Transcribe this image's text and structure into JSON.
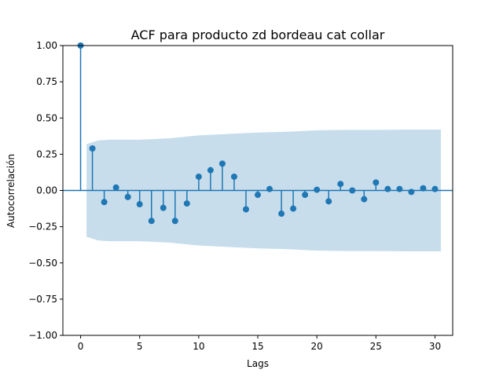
{
  "chart_data": {
    "type": "scatter",
    "subtype": "stem (autocorrelation function)",
    "title": "ACF para producto zd bordeau cat collar",
    "xlabel": "Lags",
    "ylabel": "Autocorrelación",
    "xlim": [
      -1.5,
      31.5
    ],
    "ylim": [
      -1.0,
      1.0
    ],
    "x_ticks": [
      0,
      5,
      10,
      15,
      20,
      25,
      30
    ],
    "x_tick_labels": [
      "0",
      "5",
      "10",
      "15",
      "20",
      "25",
      "30"
    ],
    "y_ticks": [
      -1.0,
      -0.75,
      -0.5,
      -0.25,
      0.0,
      0.25,
      0.5,
      0.75,
      1.0
    ],
    "y_tick_labels": [
      "−1.00",
      "−0.75",
      "−0.50",
      "−0.25",
      "0.00",
      "0.25",
      "0.50",
      "0.75",
      "1.00"
    ],
    "grid": false,
    "colors": {
      "marker": "#1f77b4",
      "band": "#1f77b4",
      "band_alpha": 0.25,
      "axes": "#000000"
    },
    "series": [
      {
        "lags": [
          0,
          1,
          2,
          3,
          4,
          5,
          6,
          7,
          8,
          9,
          10,
          11,
          12,
          13,
          14,
          15,
          16,
          17,
          18,
          19,
          20,
          21,
          22,
          23,
          24,
          25,
          26,
          27,
          28,
          29,
          30
        ],
        "values": [
          1.0,
          0.29,
          -0.08,
          0.02,
          -0.045,
          -0.095,
          -0.21,
          -0.12,
          -0.21,
          -0.09,
          0.095,
          0.14,
          0.185,
          0.095,
          -0.13,
          -0.03,
          0.01,
          -0.16,
          -0.125,
          -0.03,
          0.005,
          -0.075,
          0.045,
          0.0,
          -0.06,
          0.055,
          0.01,
          0.01,
          -0.01,
          0.015,
          0.01
        ]
      }
    ],
    "confidence_band": {
      "lags": [
        0.5,
        1.5,
        2.5,
        5,
        7.5,
        10,
        12.5,
        15,
        17.5,
        20,
        22.5,
        25,
        27.5,
        30.5
      ],
      "upper": [
        0.32,
        0.345,
        0.35,
        0.35,
        0.36,
        0.38,
        0.39,
        0.4,
        0.405,
        0.415,
        0.418,
        0.418,
        0.42,
        0.42
      ]
    }
  }
}
